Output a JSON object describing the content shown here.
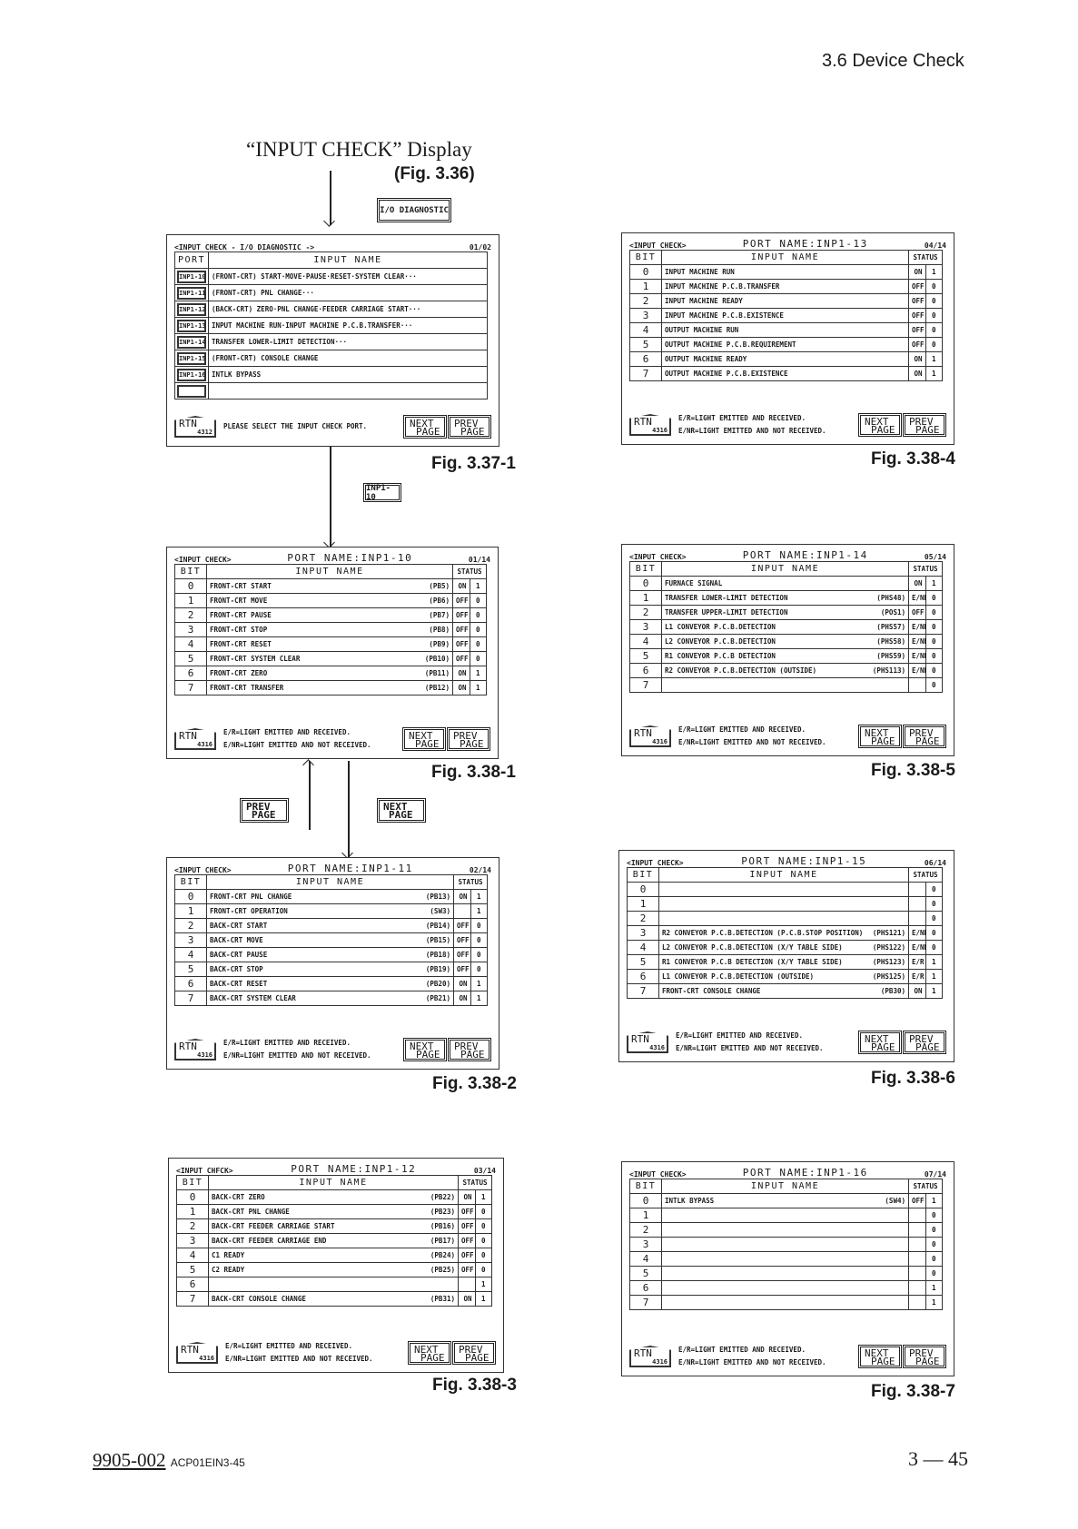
{
  "section_header": "3.6 Device Check",
  "heading": "“INPUT CHECK” Display",
  "heading_fig": "(Fig. 3.36)",
  "keys": {
    "io_diagnostic": "I/O DIAGNOSTIC",
    "inp1_10": "INP1-10",
    "prev": [
      "PREV",
      "PAGE"
    ],
    "next": [
      "NEXT",
      "PAGE"
    ]
  },
  "footer": {
    "doc_number": "9905-002",
    "doc_code": "ACP01EIN3-45",
    "page": "3 — 45"
  },
  "port_select": {
    "fig": "Fig. 3.37-1",
    "title": "<INPUT CHECK - I/O DIAGNOSTIC ->",
    "page": "01/02",
    "col_port": "PORT",
    "col_name": "INPUT NAME",
    "rows": [
      {
        "port": "INP1-10",
        "name": "(FRONT-CRT) START·MOVE·PAUSE·RESET·SYSTEM CLEAR···"
      },
      {
        "port": "INP1-11",
        "name": "(FRONT-CRT) PNL CHANGE···"
      },
      {
        "port": "INP1-12",
        "name": "(BACK-CRT) ZERO·PNL CHANGE·FEEDER CARRIAGE START···"
      },
      {
        "port": "INP1-13",
        "name": "INPUT MACHINE RUN·INPUT MACHINE P.C.B.TRANSFER···"
      },
      {
        "port": "INP1-14",
        "name": "TRANSFER LOWER-LIMIT DETECTION···"
      },
      {
        "port": "INP1-15",
        "name": "(FRONT-CRT) CONSOLE CHANGE"
      },
      {
        "port": "INP1-16",
        "name": "INTLK BYPASS"
      },
      {
        "port": "",
        "name": ""
      }
    ],
    "message": "PLEASE SELECT THE INPUT CHECK PORT.",
    "rtn": {
      "label": "RTN",
      "code": "4312"
    },
    "next": [
      "NEXT",
      "PAGE"
    ],
    "prev": [
      "PREV",
      "PAGE"
    ]
  },
  "common": {
    "col_bit": "BIT",
    "col_name": "INPUT NAME",
    "col_status": "STATUS",
    "legend": [
      "E/R=LIGHT EMITTED AND RECEIVED.",
      "E/NR=LIGHT EMITTED AND NOT RECEIVED."
    ],
    "rtn": {
      "label": "RTN",
      "code": "4316"
    },
    "next": [
      "NEXT",
      "PAGE"
    ],
    "prev": [
      "PREV",
      "PAGE"
    ]
  },
  "panels": [
    {
      "fig": "Fig. 3.38-1",
      "title": "<INPUT CHECK>",
      "port_name": "PORT NAME:INP1-10",
      "page": "01/14",
      "rows": [
        {
          "bit": "0",
          "name": "FRONT-CRT START",
          "code": "(PB5)",
          "status": "ON",
          "value": "1"
        },
        {
          "bit": "1",
          "name": "FRONT-CRT MOVE",
          "code": "(PB6)",
          "status": "OFF",
          "value": "0"
        },
        {
          "bit": "2",
          "name": "FRONT-CRT PAUSE",
          "code": "(PB7)",
          "status": "OFF",
          "value": "0"
        },
        {
          "bit": "3",
          "name": "FRONT-CRT STOP",
          "code": "(PB8)",
          "status": "OFF",
          "value": "0"
        },
        {
          "bit": "4",
          "name": "FRONT-CRT RESET",
          "code": "(PB9)",
          "status": "OFF",
          "value": "0"
        },
        {
          "bit": "5",
          "name": "FRONT-CRT SYSTEM CLEAR",
          "code": "(PB10)",
          "status": "OFF",
          "value": "0"
        },
        {
          "bit": "6",
          "name": "FRONT-CRT ZERO",
          "code": "(PB11)",
          "status": "ON",
          "value": "1"
        },
        {
          "bit": "7",
          "name": "FRONT-CRT TRANSFER",
          "code": "(PB12)",
          "status": "ON",
          "value": "1"
        }
      ]
    },
    {
      "fig": "Fig. 3.38-2",
      "title": "<INPUT CHECK>",
      "port_name": "PORT NAME:INP1-11",
      "page": "02/14",
      "rows": [
        {
          "bit": "0",
          "name": "FRONT-CRT PNL CHANGE",
          "code": "(PB13)",
          "status": "ON",
          "value": "1"
        },
        {
          "bit": "1",
          "name": "FRONT-CRT OPERATION",
          "code": "(SW3)",
          "status": "",
          "value": "1"
        },
        {
          "bit": "2",
          "name": "BACK-CRT START",
          "code": "(PB14)",
          "status": "OFF",
          "value": "0"
        },
        {
          "bit": "3",
          "name": "BACK-CRT MOVE",
          "code": "(PB15)",
          "status": "OFF",
          "value": "0"
        },
        {
          "bit": "4",
          "name": "BACK-CRT PAUSE",
          "code": "(PB18)",
          "status": "OFF",
          "value": "0"
        },
        {
          "bit": "5",
          "name": "BACK-CRT STOP",
          "code": "(PB19)",
          "status": "OFF",
          "value": "0"
        },
        {
          "bit": "6",
          "name": "BACK-CRT RESET",
          "code": "(PB20)",
          "status": "ON",
          "value": "1"
        },
        {
          "bit": "7",
          "name": "BACK-CRT SYSTEM CLEAR",
          "code": "(PB21)",
          "status": "ON",
          "value": "1"
        }
      ]
    },
    {
      "fig": "Fig. 3.38-3",
      "title": "<INPUT CHFCK>",
      "port_name": "PORT NAME:INP1-12",
      "page": "03/14",
      "rows": [
        {
          "bit": "0",
          "name": "BACK-CRT ZERO",
          "code": "(PB22)",
          "status": "ON",
          "value": "1"
        },
        {
          "bit": "1",
          "name": "BACK-CRT PNL CHANGE",
          "code": "(PB23)",
          "status": "OFF",
          "value": "0"
        },
        {
          "bit": "2",
          "name": "BACK-CRT FEEDER CARRIAGE START",
          "code": "(PB16)",
          "status": "OFF",
          "value": "0"
        },
        {
          "bit": "3",
          "name": "BACK-CRT FEEDER CARRIAGE END",
          "code": "(PB17)",
          "status": "OFF",
          "value": "0"
        },
        {
          "bit": "4",
          "name": "C1 READY",
          "code": "(PB24)",
          "status": "OFF",
          "value": "0"
        },
        {
          "bit": "5",
          "name": "C2 READY",
          "code": "(PB25)",
          "status": "OFF",
          "value": "0"
        },
        {
          "bit": "6",
          "name": "",
          "code": "",
          "status": "",
          "value": "1"
        },
        {
          "bit": "7",
          "name": "BACK-CRT CONSOLE CHANGE",
          "code": "(PB31)",
          "status": "ON",
          "value": "1"
        }
      ]
    },
    {
      "fig": "Fig. 3.38-4",
      "title": "<INPUT CHECK>",
      "port_name": "PORT NAME:INP1-13",
      "page": "04/14",
      "rows": [
        {
          "bit": "0",
          "name": "INPUT MACHINE RUN",
          "code": "",
          "status": "ON",
          "value": "1"
        },
        {
          "bit": "1",
          "name": "INPUT MACHINE P.C.B.TRANSFER",
          "code": "",
          "status": "OFF",
          "value": "0"
        },
        {
          "bit": "2",
          "name": "INPUT MACHINE READY",
          "code": "",
          "status": "OFF",
          "value": "0"
        },
        {
          "bit": "3",
          "name": "INPUT MACHINE P.C.B.EXISTENCE",
          "code": "",
          "status": "OFF",
          "value": "0"
        },
        {
          "bit": "4",
          "name": "OUTPUT MACHINE RUN",
          "code": "",
          "status": "OFF",
          "value": "0"
        },
        {
          "bit": "5",
          "name": "OUTPUT MACHINE P.C.B.REQUIREMENT",
          "code": "",
          "status": "OFF",
          "value": "0"
        },
        {
          "bit": "6",
          "name": "OUTPUT MACHINE READY",
          "code": "",
          "status": "ON",
          "value": "1"
        },
        {
          "bit": "7",
          "name": "OUTPUT MACHINE P.C.B.EXISTENCE",
          "code": "",
          "status": "ON",
          "value": "1"
        }
      ]
    },
    {
      "fig": "Fig. 3.38-5",
      "title": "<INPUT CHECK>",
      "port_name": "PORT NAME:INP1-14",
      "page": "05/14",
      "rows": [
        {
          "bit": "0",
          "name": "FURNACE SIGNAL",
          "code": "",
          "status": "ON",
          "value": "1"
        },
        {
          "bit": "1",
          "name": "TRANSFER LOWER-LIMIT DETECTION",
          "code": "(PHS48)",
          "status": "E/NR",
          "value": "0"
        },
        {
          "bit": "2",
          "name": "TRANSFER UPPER-LIMIT DETECTION",
          "code": "(POS1)",
          "status": "OFF",
          "value": "0"
        },
        {
          "bit": "3",
          "name": "L1 CONVEYOR P.C.B.DETECTION",
          "code": "(PHS57)",
          "status": "E/NR",
          "value": "0"
        },
        {
          "bit": "4",
          "name": "L2 CONVEYOR P.C.B.DETECTION",
          "code": "(PHS58)",
          "status": "E/NR",
          "value": "0"
        },
        {
          "bit": "5",
          "name": "R1 CONVEYOR P.C.B DETECTION",
          "code": "(PHS59)",
          "status": "E/NR",
          "value": "0"
        },
        {
          "bit": "6",
          "name": "R2 CONVEYOR P.C.B.DETECTION (OUTSIDE)",
          "code": "(PHS113)",
          "status": "E/NR",
          "value": "0"
        },
        {
          "bit": "7",
          "name": "",
          "code": "",
          "status": "",
          "value": "0"
        }
      ]
    },
    {
      "fig": "Fig. 3.38-6",
      "title": "<INPUT CHECK>",
      "port_name": "PORT NAME:INP1-15",
      "page": "06/14",
      "rows": [
        {
          "bit": "0",
          "name": "",
          "code": "",
          "status": "",
          "value": "0"
        },
        {
          "bit": "1",
          "name": "",
          "code": "",
          "status": "",
          "value": "0"
        },
        {
          "bit": "2",
          "name": "",
          "code": "",
          "status": "",
          "value": "0"
        },
        {
          "bit": "3",
          "name": "R2 CONVEYOR P.C.B.DETECTION (P.C.B.STOP POSITION)",
          "code": "(PHS121)",
          "status": "E/NR",
          "value": "0"
        },
        {
          "bit": "4",
          "name": "L2 CONVEYOR P.C.B.DETECTION (X/Y TABLE SIDE)",
          "code": "(PHS122)",
          "status": "E/NR",
          "value": "0"
        },
        {
          "bit": "5",
          "name": "R1 CONVEYOR P.C.B DETECTION (X/Y TABLE SIDE)",
          "code": "(PHS123)",
          "status": "E/R",
          "value": "1"
        },
        {
          "bit": "6",
          "name": "L1 CONVEYOR P.C.B.DETECTION (OUTSIDE)",
          "code": "(PHS125)",
          "status": "E/R",
          "value": "1"
        },
        {
          "bit": "7",
          "name": "FRONT-CRT CONSOLE CHANGE",
          "code": "(PB30)",
          "status": "ON",
          "value": "1"
        }
      ]
    },
    {
      "fig": "Fig. 3.38-7",
      "title": "<INPUT CHECK>",
      "port_name": "PORT NAME:INP1-16",
      "page": "07/14",
      "rows": [
        {
          "bit": "0",
          "name": "INTLK BYPASS",
          "code": "(SW4)",
          "status": "OFF",
          "value": "1"
        },
        {
          "bit": "1",
          "name": "",
          "code": "",
          "status": "",
          "value": "0"
        },
        {
          "bit": "2",
          "name": "",
          "code": "",
          "status": "",
          "value": "0"
        },
        {
          "bit": "3",
          "name": "",
          "code": "",
          "status": "",
          "value": "0"
        },
        {
          "bit": "4",
          "name": "",
          "code": "",
          "status": "",
          "value": "0"
        },
        {
          "bit": "5",
          "name": "",
          "code": "",
          "status": "",
          "value": "0"
        },
        {
          "bit": "6",
          "name": "",
          "code": "",
          "status": "",
          "value": "1"
        },
        {
          "bit": "7",
          "name": "",
          "code": "",
          "status": "",
          "value": "1"
        }
      ]
    }
  ]
}
